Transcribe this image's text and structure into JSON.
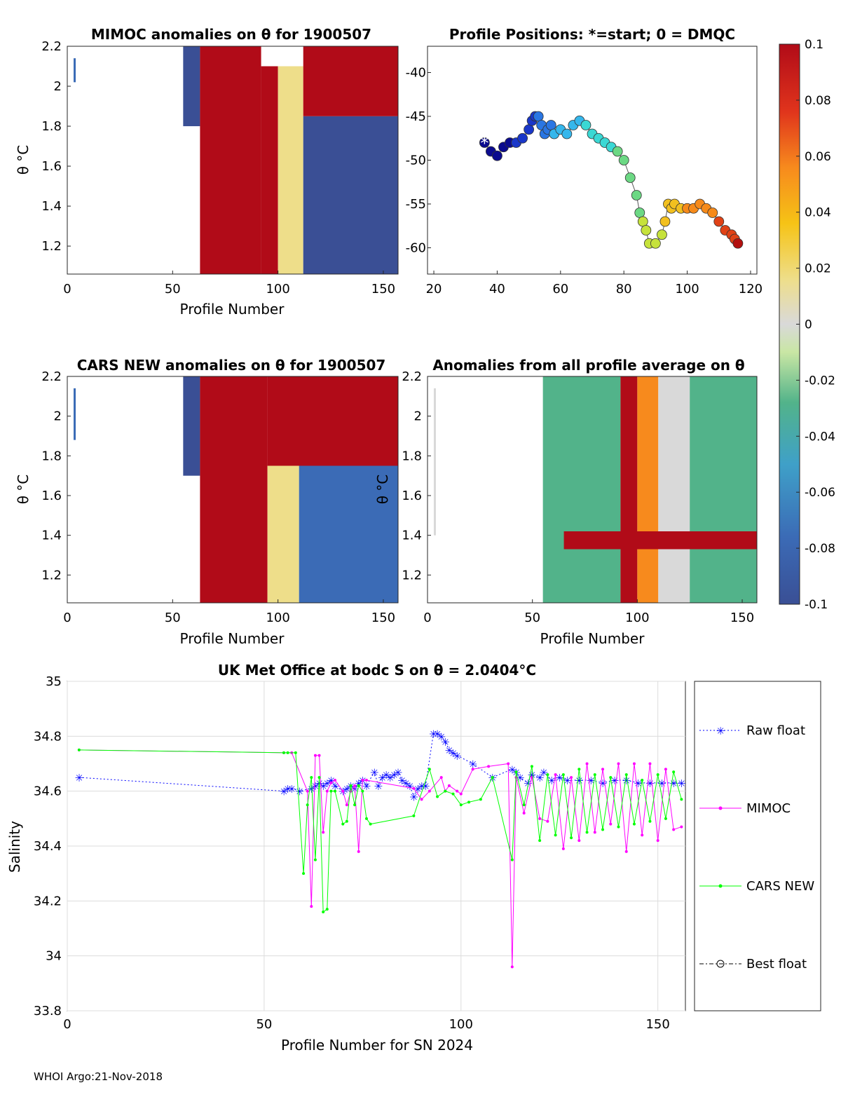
{
  "footer": "WHOI Argo:21-Nov-2018",
  "colors": {
    "raw": "#0000ff",
    "mimoc": "#ff00ff",
    "cars": "#00ff00",
    "best": "#000000",
    "colormap": [
      "#313695",
      "#4575b4",
      "#74add1",
      "#abd9e9",
      "#d9d9d9",
      "#e6f598",
      "#fee08b",
      "#fdae61",
      "#f46d43",
      "#d73027",
      "#a50026"
    ]
  },
  "chart_data": [
    {
      "type": "heatmap",
      "title": "MIMOC anomalies on θ  for 1900507",
      "xlabel": "Profile Number",
      "ylabel": "θ °C",
      "xlim": [
        0,
        157
      ],
      "ylim": [
        1.06,
        2.2
      ],
      "xticks": [
        "0",
        "50",
        "100",
        "150"
      ],
      "yticks": [
        "2.2",
        "2",
        "1.8",
        "1.6",
        "1.4",
        "1.2"
      ],
      "regions": [
        {
          "x0": 3,
          "x1": 4,
          "y0": 2.02,
          "y1": 2.14,
          "value": -0.09
        },
        {
          "x0": 55,
          "x1": 63,
          "y0": 1.8,
          "y1": 2.2,
          "value": -0.1
        },
        {
          "x0": 63,
          "x1": 92,
          "y0": 1.06,
          "y1": 2.2,
          "value": 0.1
        },
        {
          "x0": 92,
          "x1": 100,
          "y0": 1.06,
          "y1": 2.1,
          "value": 0.1
        },
        {
          "x0": 100,
          "x1": 112,
          "y0": 1.06,
          "y1": 2.1,
          "value": 0.01
        },
        {
          "x0": 112,
          "x1": 157,
          "y0": 1.06,
          "y1": 1.85,
          "value": -0.1
        },
        {
          "x0": 112,
          "x1": 157,
          "y0": 1.85,
          "y1": 2.2,
          "value": 0.1
        }
      ]
    },
    {
      "type": "scatter",
      "title": "Profile Positions: *=start; 0 = DMQC",
      "xlim": [
        18,
        122
      ],
      "ylim": [
        -63,
        -37
      ],
      "xticks": [
        "20",
        "40",
        "60",
        "80",
        "100",
        "120"
      ],
      "yticks": [
        "-40",
        "-45",
        "-50",
        "-55",
        "-60"
      ],
      "x": [
        36,
        38,
        40,
        42,
        44,
        46,
        48,
        50,
        51,
        52,
        53,
        54,
        55,
        56,
        57,
        58,
        60,
        62,
        64,
        66,
        68,
        70,
        72,
        74,
        76,
        78,
        80,
        82,
        84,
        85,
        86,
        87,
        88,
        90,
        92,
        93,
        94,
        95,
        96,
        98,
        100,
        102,
        104,
        106,
        108,
        110,
        112,
        114,
        115,
        116
      ],
      "y": [
        -48,
        -49,
        -49.5,
        -48.5,
        -48,
        -48,
        -47.5,
        -46.5,
        -45.5,
        -45,
        -45,
        -46,
        -47,
        -46.5,
        -46,
        -47,
        -46.5,
        -47,
        -46,
        -45.5,
        -46,
        -47,
        -47.5,
        -48,
        -48.5,
        -49,
        -50,
        -52,
        -54,
        -56,
        -57,
        -58,
        -59.5,
        -59.5,
        -58.5,
        -57,
        -55,
        -55.5,
        -55,
        -55.5,
        -55.5,
        -55.5,
        -55,
        -55.5,
        -56,
        -57,
        -58,
        -58.5,
        -59,
        -59.5
      ]
    },
    {
      "type": "heatmap",
      "title": "CARS NEW anomalies on θ for 1900507",
      "xlabel": "Profile Number",
      "ylabel": "θ °C",
      "xlim": [
        0,
        157
      ],
      "ylim": [
        1.06,
        2.2
      ],
      "xticks": [
        "0",
        "50",
        "100",
        "150"
      ],
      "yticks": [
        "2.2",
        "2",
        "1.8",
        "1.6",
        "1.4",
        "1.2"
      ],
      "regions": [
        {
          "x0": 3,
          "x1": 4,
          "y0": 1.88,
          "y1": 2.14,
          "value": -0.09
        },
        {
          "x0": 55,
          "x1": 63,
          "y0": 1.7,
          "y1": 2.2,
          "value": -0.1
        },
        {
          "x0": 63,
          "x1": 95,
          "y0": 1.06,
          "y1": 2.2,
          "value": 0.1
        },
        {
          "x0": 95,
          "x1": 110,
          "y0": 1.06,
          "y1": 1.75,
          "value": 0.01
        },
        {
          "x0": 110,
          "x1": 157,
          "y0": 1.06,
          "y1": 1.75,
          "value": -0.09
        },
        {
          "x0": 95,
          "x1": 157,
          "y0": 1.75,
          "y1": 2.2,
          "value": 0.1
        }
      ]
    },
    {
      "type": "heatmap",
      "title": "Anomalies from all profile average on θ",
      "xlabel": "Profile Number",
      "ylabel": "θ °C",
      "xlim": [
        0,
        157
      ],
      "ylim": [
        1.06,
        2.2
      ],
      "xticks": [
        "0",
        "50",
        "100",
        "150"
      ],
      "yticks": [
        "2.2",
        "2",
        "1.8",
        "1.6",
        "1.4",
        "1.2"
      ],
      "regions": [
        {
          "x0": 3,
          "x1": 4,
          "y0": 1.4,
          "y1": 2.14,
          "value": 0.0
        },
        {
          "x0": 55,
          "x1": 92,
          "y0": 1.06,
          "y1": 2.2,
          "value": -0.025
        },
        {
          "x0": 92,
          "x1": 100,
          "y0": 1.06,
          "y1": 2.2,
          "value": 0.1
        },
        {
          "x0": 100,
          "x1": 110,
          "y0": 1.06,
          "y1": 2.2,
          "value": 0.06
        },
        {
          "x0": 110,
          "x1": 125,
          "y0": 1.06,
          "y1": 2.2,
          "value": 0.0
        },
        {
          "x0": 125,
          "x1": 157,
          "y0": 1.06,
          "y1": 2.2,
          "value": -0.02
        },
        {
          "x0": 65,
          "x1": 157,
          "y0": 1.33,
          "y1": 1.42,
          "value": 0.1
        }
      ]
    },
    {
      "type": "line",
      "title": "UK Met Office at bodc S on θ = 2.0404°C",
      "xlabel": "Profile Number for SN 2024",
      "ylabel": "Salinity",
      "xlim": [
        0,
        157
      ],
      "ylim": [
        33.8,
        35
      ],
      "xticks": [
        "0",
        "50",
        "100",
        "150"
      ],
      "yticks": [
        "35",
        "34.8",
        "34.6",
        "34.4",
        "34.2",
        "34",
        "33.8"
      ],
      "series": [
        {
          "name": "Raw float",
          "x": [
            3,
            55,
            56,
            57,
            59,
            62,
            63,
            64,
            65,
            66,
            67,
            68,
            70,
            71,
            72,
            73,
            74,
            75,
            76,
            78,
            79,
            80,
            81,
            82,
            83,
            84,
            85,
            86,
            87,
            88,
            89,
            90,
            91,
            93,
            94,
            95,
            96,
            97,
            98,
            99,
            103,
            108,
            113,
            114,
            115,
            117,
            118,
            120,
            121,
            123,
            125,
            127,
            130,
            133,
            136,
            139,
            142,
            145,
            148,
            151,
            154,
            156
          ],
          "y": [
            34.65,
            34.6,
            34.61,
            34.61,
            34.6,
            34.61,
            34.62,
            34.63,
            34.62,
            34.63,
            34.64,
            34.62,
            34.6,
            34.61,
            34.62,
            34.61,
            34.63,
            34.64,
            34.62,
            34.67,
            34.62,
            34.65,
            34.66,
            34.65,
            34.66,
            34.67,
            34.64,
            34.63,
            34.62,
            34.58,
            34.61,
            34.62,
            34.62,
            34.81,
            34.81,
            34.8,
            34.78,
            34.75,
            34.74,
            34.73,
            34.7,
            34.65,
            34.68,
            34.67,
            34.65,
            34.63,
            34.66,
            34.65,
            34.67,
            34.64,
            34.65,
            34.64,
            34.64,
            34.64,
            34.63,
            34.64,
            34.64,
            34.63,
            34.63,
            34.63,
            34.63,
            34.63
          ]
        },
        {
          "name": "MIMOC",
          "x": [
            3,
            55,
            57,
            61,
            62,
            63,
            64,
            65,
            66,
            67,
            68,
            70,
            71,
            72,
            73,
            74,
            75,
            76,
            88,
            90,
            92,
            95,
            96,
            97,
            99,
            100,
            103,
            107,
            112,
            113,
            114,
            116,
            118,
            120,
            122,
            124,
            126,
            128,
            130,
            132,
            134,
            136,
            138,
            140,
            142,
            144,
            146,
            148,
            150,
            152,
            154,
            156
          ],
          "y": [
            34.75,
            34.74,
            34.74,
            34.6,
            34.18,
            34.73,
            34.73,
            34.45,
            34.6,
            34.63,
            34.64,
            34.6,
            34.55,
            34.6,
            34.62,
            34.38,
            34.64,
            34.64,
            34.61,
            34.57,
            34.6,
            34.65,
            34.6,
            34.62,
            34.6,
            34.59,
            34.68,
            34.69,
            34.7,
            33.96,
            34.65,
            34.52,
            34.65,
            34.5,
            34.49,
            34.66,
            34.39,
            34.65,
            34.42,
            34.7,
            34.45,
            34.68,
            34.48,
            34.7,
            34.38,
            34.7,
            34.44,
            34.7,
            34.42,
            34.68,
            34.46,
            34.47
          ]
        },
        {
          "name": "CARS NEW",
          "x": [
            3,
            55,
            56,
            58,
            60,
            61,
            62,
            63,
            64,
            65,
            66,
            67,
            68,
            70,
            71,
            72,
            73,
            74,
            75,
            76,
            77,
            88,
            92,
            94,
            96,
            98,
            100,
            102,
            105,
            108,
            113,
            114,
            116,
            118,
            120,
            122,
            124,
            126,
            128,
            130,
            132,
            134,
            136,
            138,
            140,
            142,
            144,
            146,
            148,
            150,
            152,
            154,
            156
          ],
          "y": [
            34.75,
            34.74,
            34.74,
            34.74,
            34.3,
            34.55,
            34.65,
            34.35,
            34.65,
            34.16,
            34.17,
            34.6,
            34.6,
            34.48,
            34.49,
            34.62,
            34.55,
            34.62,
            34.6,
            34.5,
            34.48,
            34.51,
            34.68,
            34.58,
            34.6,
            34.59,
            34.55,
            34.56,
            34.57,
            34.65,
            34.35,
            34.67,
            34.55,
            34.69,
            34.42,
            34.66,
            34.44,
            34.66,
            34.43,
            34.68,
            34.45,
            34.66,
            34.46,
            34.65,
            34.47,
            34.66,
            34.48,
            34.64,
            34.49,
            34.66,
            34.5,
            34.67,
            34.57
          ]
        },
        {
          "name": "Best float",
          "x": [],
          "y": []
        }
      ]
    }
  ],
  "colorbar": {
    "ticks": [
      "0.1",
      "0.08",
      "0.06",
      "0.04",
      "0.02",
      "0",
      "-0.02",
      "-0.04",
      "-0.06",
      "-0.08",
      "-0.1"
    ],
    "range": [
      -0.1,
      0.1
    ]
  }
}
